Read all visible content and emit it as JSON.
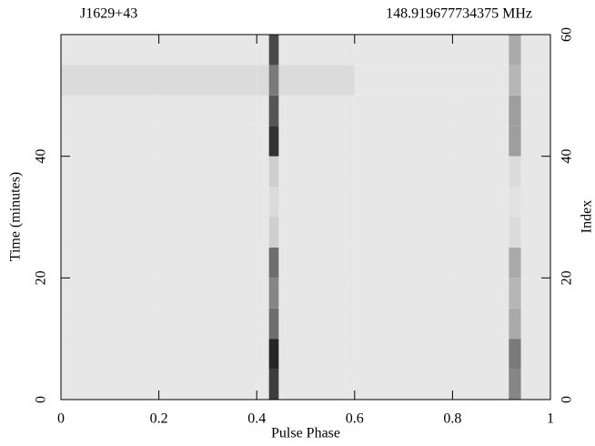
{
  "chart_data": {
    "type": "heatmap",
    "title": "J1629+43",
    "subtitle": "148.919677734375 MHz",
    "x_label": "Pulse Phase",
    "y_label": "Time (minutes)",
    "y2_label": "Index",
    "xbins": [
      0,
      0.2,
      0.4,
      0.425,
      0.445,
      0.6,
      0.8,
      0.915,
      0.94,
      1
    ],
    "ybins": [
      0,
      5,
      10,
      15,
      20,
      25,
      30,
      35,
      40,
      45,
      50,
      55,
      60
    ],
    "values": [
      [
        0.1,
        0.1,
        0.1,
        0.8,
        0.1,
        0.1,
        0.1,
        0.5,
        0.1
      ],
      [
        0.1,
        0.1,
        0.1,
        0.9,
        0.1,
        0.1,
        0.1,
        0.55,
        0.1
      ],
      [
        0.1,
        0.1,
        0.1,
        0.6,
        0.1,
        0.1,
        0.1,
        0.35,
        0.1
      ],
      [
        0.1,
        0.1,
        0.1,
        0.5,
        0.1,
        0.1,
        0.1,
        0.3,
        0.1
      ],
      [
        0.1,
        0.1,
        0.1,
        0.6,
        0.1,
        0.1,
        0.1,
        0.35,
        0.1
      ],
      [
        0.1,
        0.1,
        0.1,
        0.2,
        0.1,
        0.1,
        0.1,
        0.15,
        0.1
      ],
      [
        0.1,
        0.1,
        0.1,
        0.15,
        0.1,
        0.1,
        0.1,
        0.12,
        0.1
      ],
      [
        0.1,
        0.1,
        0.1,
        0.2,
        0.1,
        0.1,
        0.1,
        0.15,
        0.1
      ],
      [
        0.1,
        0.1,
        0.1,
        0.85,
        0.1,
        0.1,
        0.1,
        0.4,
        0.1
      ],
      [
        0.1,
        0.1,
        0.1,
        0.7,
        0.1,
        0.1,
        0.1,
        0.4,
        0.1
      ],
      [
        0.15,
        0.15,
        0.15,
        0.55,
        0.15,
        0.1,
        0.1,
        0.3,
        0.1
      ],
      [
        0.1,
        0.1,
        0.1,
        0.75,
        0.1,
        0.1,
        0.1,
        0.35,
        0.1
      ]
    ],
    "xlim": [
      0,
      1
    ],
    "xticks": [
      0,
      0.2,
      0.4,
      0.6,
      0.8,
      1
    ],
    "ylim": [
      0,
      60
    ],
    "yticks": [
      0,
      20,
      40
    ],
    "y2lim": [
      0,
      60
    ],
    "y2ticks": [
      0,
      20,
      40,
      60
    ]
  }
}
